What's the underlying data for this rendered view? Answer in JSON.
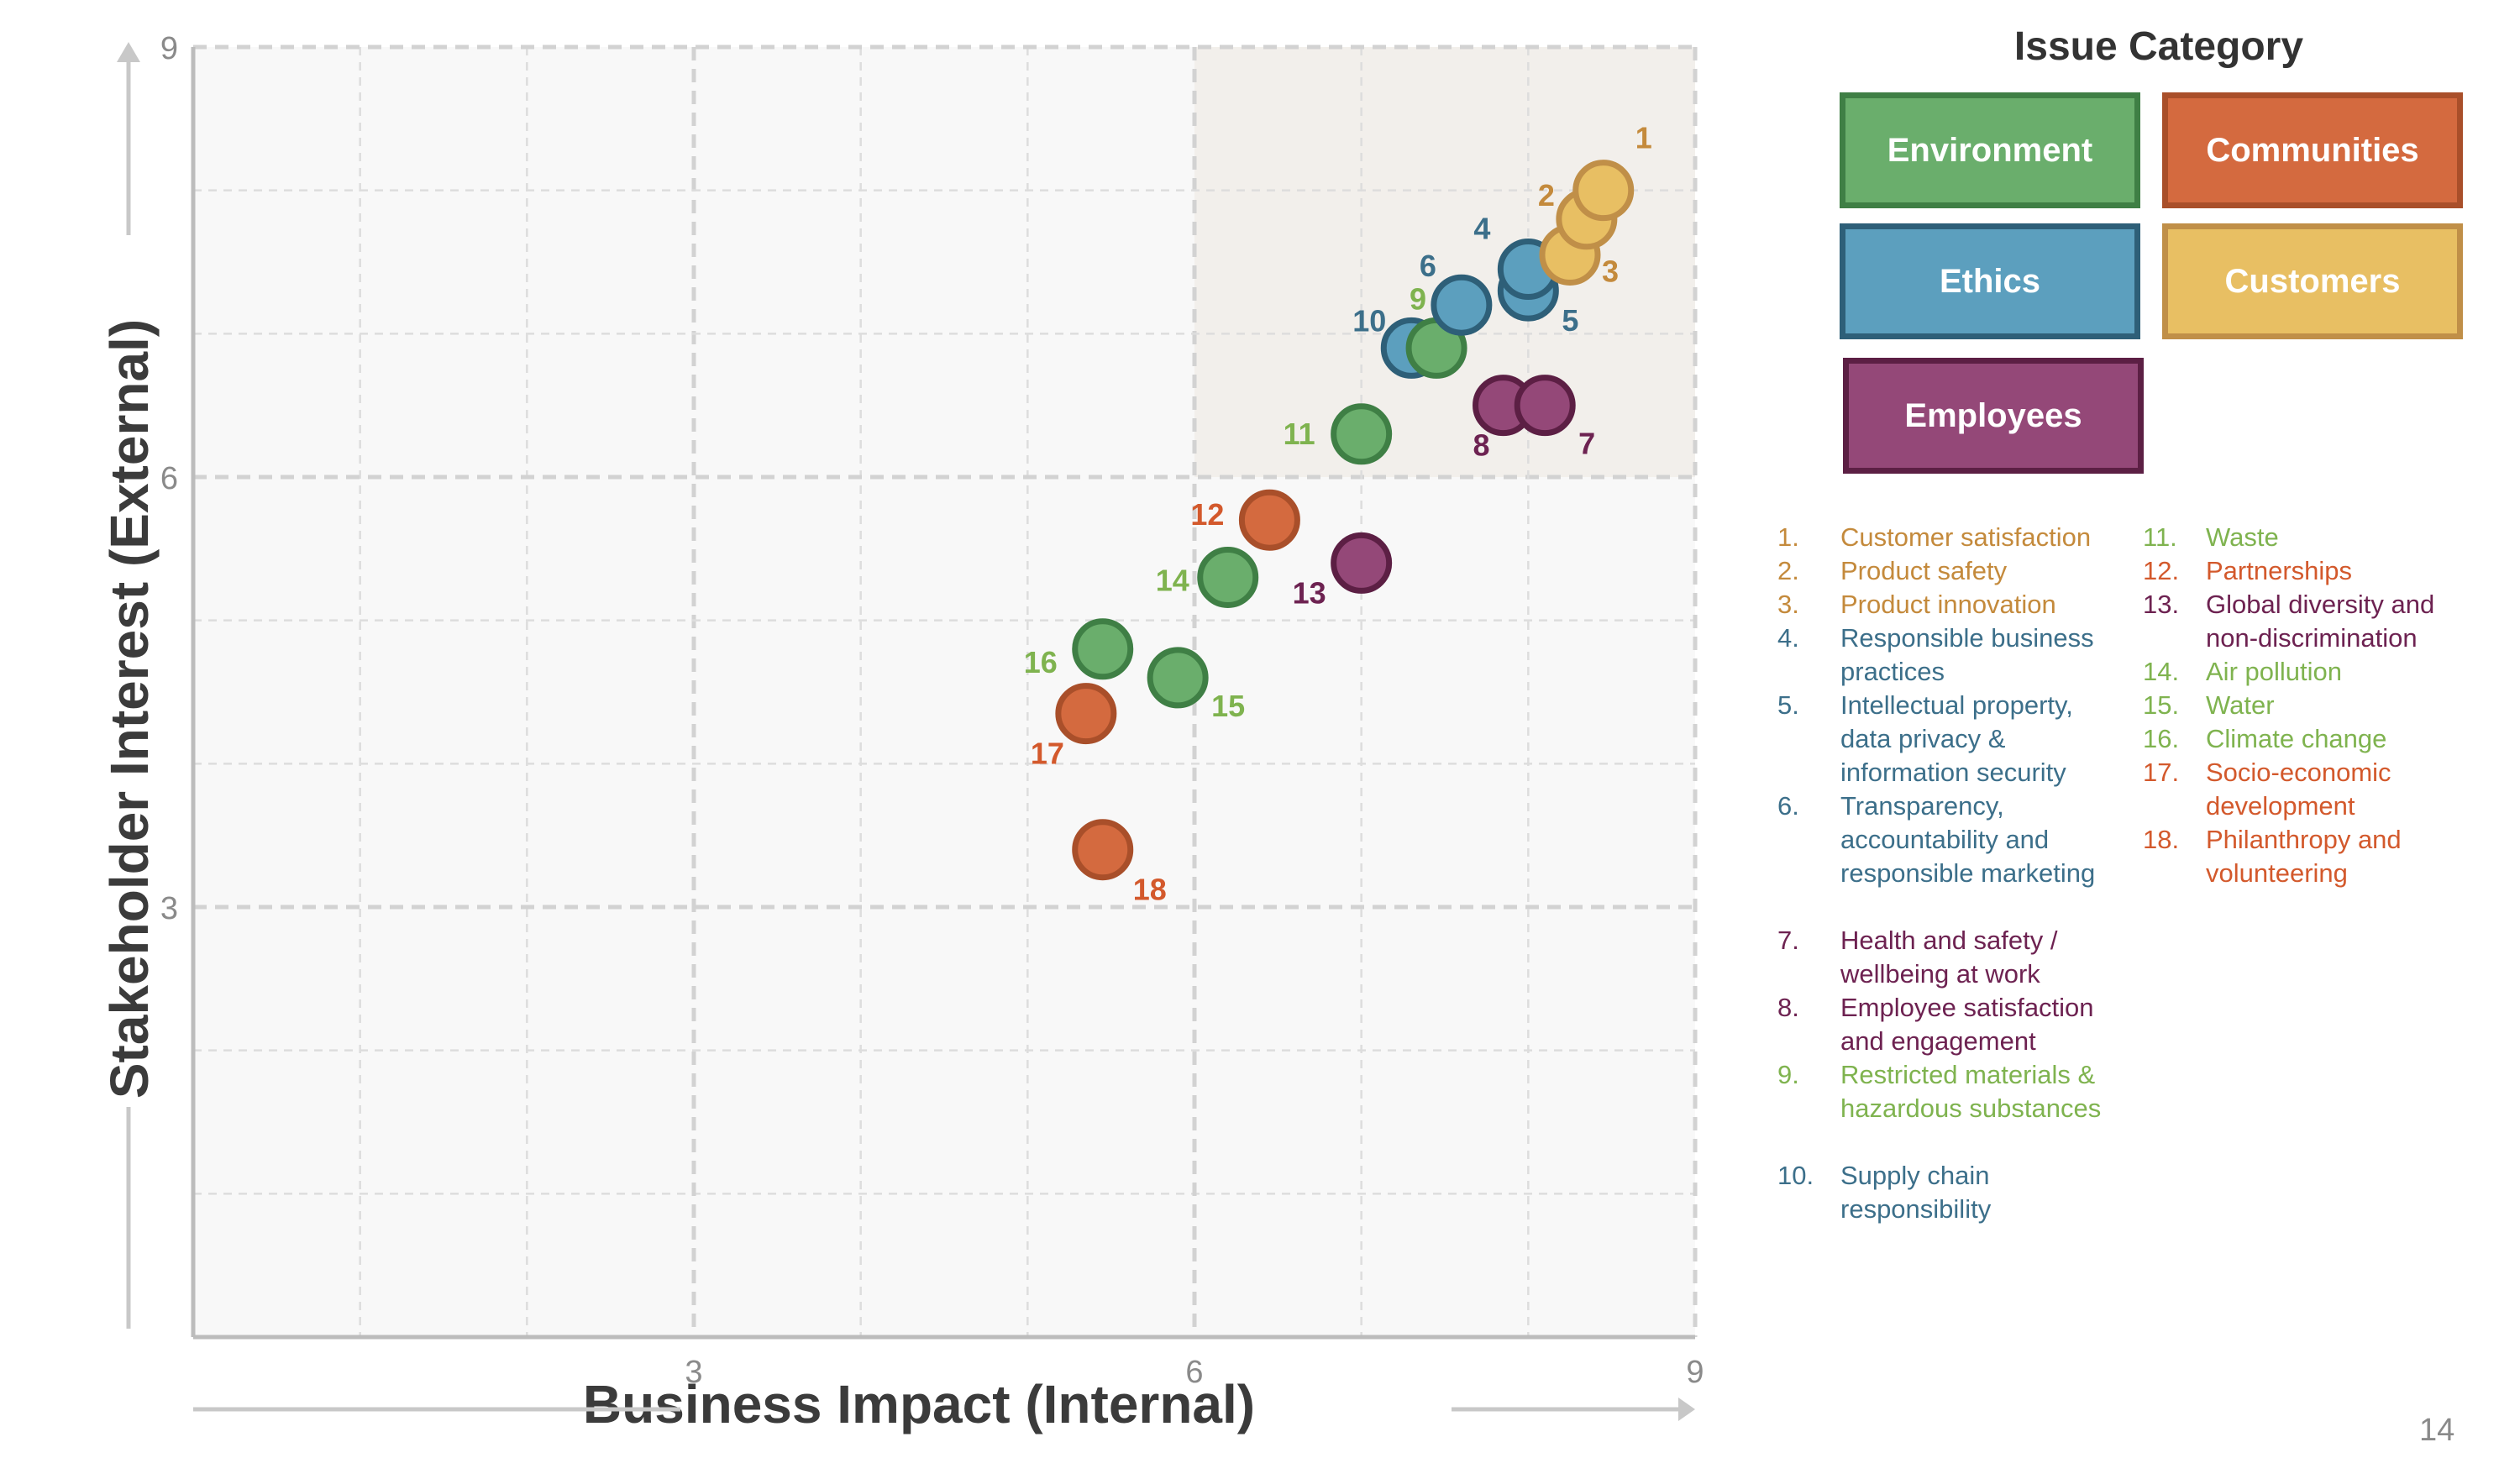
{
  "chart_data": {
    "type": "scatter",
    "xlabel": "Business Impact (Internal)",
    "ylabel": "Stakeholder Interest (External)",
    "xlim": [
      0,
      9
    ],
    "ylim": [
      0,
      9
    ],
    "x_ticks": [
      "3",
      "6",
      "9"
    ],
    "y_ticks": [
      "3",
      "6",
      "9"
    ],
    "grid": true,
    "highlight_region": {
      "x": [
        6,
        9
      ],
      "y": [
        6,
        9
      ]
    },
    "points": [
      {
        "id": "1",
        "x": 8.45,
        "y": 8.0,
        "category": "Customers"
      },
      {
        "id": "2",
        "x": 8.35,
        "y": 7.8,
        "category": "Customers"
      },
      {
        "id": "3",
        "x": 8.25,
        "y": 7.55,
        "category": "Customers"
      },
      {
        "id": "4",
        "x": 8.0,
        "y": 7.45,
        "category": "Ethics"
      },
      {
        "id": "5",
        "x": 8.0,
        "y": 7.3,
        "category": "Ethics"
      },
      {
        "id": "6",
        "x": 7.6,
        "y": 7.2,
        "category": "Ethics"
      },
      {
        "id": "7",
        "x": 8.1,
        "y": 6.5,
        "category": "Employees"
      },
      {
        "id": "8",
        "x": 7.85,
        "y": 6.5,
        "category": "Employees"
      },
      {
        "id": "9",
        "x": 7.45,
        "y": 6.9,
        "category": "Environment"
      },
      {
        "id": "10",
        "x": 7.3,
        "y": 6.9,
        "category": "Ethics"
      },
      {
        "id": "11",
        "x": 7.0,
        "y": 6.3,
        "category": "Environment"
      },
      {
        "id": "12",
        "x": 6.45,
        "y": 5.7,
        "category": "Communities"
      },
      {
        "id": "13",
        "x": 7.0,
        "y": 5.4,
        "category": "Employees"
      },
      {
        "id": "14",
        "x": 6.2,
        "y": 5.3,
        "category": "Environment"
      },
      {
        "id": "15",
        "x": 5.9,
        "y": 4.6,
        "category": "Environment"
      },
      {
        "id": "16",
        "x": 5.45,
        "y": 4.8,
        "category": "Environment"
      },
      {
        "id": "17",
        "x": 5.35,
        "y": 4.35,
        "category": "Communities"
      },
      {
        "id": "18",
        "x": 5.45,
        "y": 3.4,
        "category": "Communities"
      }
    ]
  },
  "legend": {
    "title": "Issue Category",
    "categories": [
      {
        "name": "Environment",
        "fill": "#6aae6c",
        "border": "#3f7f45",
        "text_color": "#7fb34f"
      },
      {
        "name": "Communities",
        "fill": "#d46a3f",
        "border": "#a94f2a",
        "text_color": "#d3592c"
      },
      {
        "name": "Ethics",
        "fill": "#5c9fbe",
        "border": "#2e5f78",
        "text_color": "#3c6f8a"
      },
      {
        "name": "Customers",
        "fill": "#e8bf63",
        "border": "#c08f48",
        "text_color": "#c48a3c"
      },
      {
        "name": "Employees",
        "fill": "#944878",
        "border": "#5c1f44",
        "text_color": "#6d2251"
      }
    ]
  },
  "issues": [
    {
      "num": "1.",
      "text": "Customer satisfaction",
      "category": "Customers"
    },
    {
      "num": "2.",
      "text": "Product safety",
      "category": "Customers"
    },
    {
      "num": "3.",
      "text": "Product innovation",
      "category": "Customers"
    },
    {
      "num": "4.",
      "text": "Responsible business practices",
      "category": "Ethics"
    },
    {
      "num": "5.",
      "text": "Intellectual property, data privacy & information security",
      "category": "Ethics"
    },
    {
      "num": "6.",
      "text": "Transparency, accountability and responsible marketing",
      "category": "Ethics"
    },
    {
      "num": "7.",
      "text": "Health and safety / wellbeing at work",
      "category": "Employees"
    },
    {
      "num": "8.",
      "text": "Employee satisfaction and engagement",
      "category": "Employees"
    },
    {
      "num": "9.",
      "text": "Restricted materials & hazardous substances",
      "category": "Environment"
    },
    {
      "num": "10.",
      "text": "Supply chain responsibility",
      "category": "Ethics"
    },
    {
      "num": "11.",
      "text": "Waste",
      "category": "Environment"
    },
    {
      "num": "12.",
      "text": "Partnerships",
      "category": "Communities"
    },
    {
      "num": "13.",
      "text": "Global diversity and non-discrimination",
      "category": "Employees"
    },
    {
      "num": "14.",
      "text": "Air pollution",
      "category": "Environment"
    },
    {
      "num": "15.",
      "text": "Water",
      "category": "Environment"
    },
    {
      "num": "16.",
      "text": "Climate change",
      "category": "Environment"
    },
    {
      "num": "17.",
      "text": "Socio-economic development",
      "category": "Communities"
    },
    {
      "num": "18.",
      "text": "Philanthropy and volunteering",
      "category": "Communities"
    }
  ],
  "page_number": "14"
}
